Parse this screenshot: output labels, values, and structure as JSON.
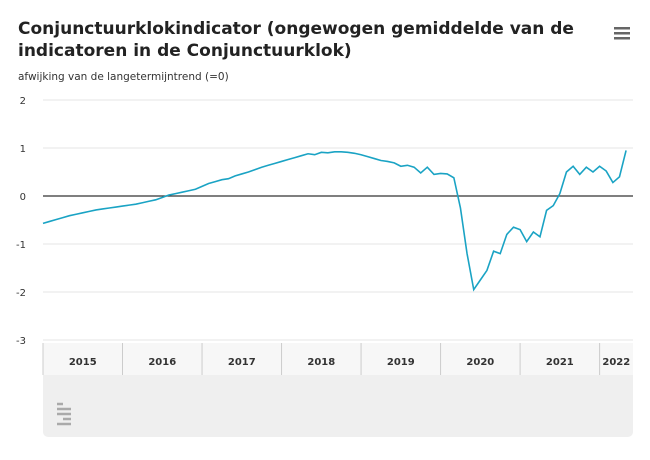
{
  "chart_data": {
    "type": "line",
    "title_lines": [
      "Conjunctuurklokindicator (ongewogen gemiddelde van de",
      "indicatoren in de Conjunctuurklok)"
    ],
    "subtitle": "afwijking van de langetermijntrend (=0)",
    "x": [
      2015,
      2015.083,
      2015.167,
      2015.25,
      2015.333,
      2015.417,
      2015.5,
      2015.583,
      2015.667,
      2015.75,
      2015.833,
      2015.917,
      2016,
      2016.083,
      2016.167,
      2016.25,
      2016.333,
      2016.417,
      2016.5,
      2016.583,
      2016.667,
      2016.75,
      2016.833,
      2016.917,
      2017,
      2017.083,
      2017.167,
      2017.25,
      2017.333,
      2017.417,
      2017.5,
      2017.583,
      2017.667,
      2017.75,
      2017.833,
      2017.917,
      2018,
      2018.083,
      2018.167,
      2018.25,
      2018.333,
      2018.417,
      2018.5,
      2018.583,
      2018.667,
      2018.75,
      2018.833,
      2018.917,
      2019,
      2019.083,
      2019.167,
      2019.25,
      2019.333,
      2019.417,
      2019.5,
      2019.583,
      2019.667,
      2019.75,
      2019.833,
      2019.917,
      2020,
      2020.083,
      2020.167,
      2020.25,
      2020.333,
      2020.417,
      2020.5,
      2020.583,
      2020.667,
      2020.75,
      2020.833,
      2020.917,
      2021,
      2021.083,
      2021.167,
      2021.25,
      2021.333,
      2021.417,
      2021.5,
      2021.583,
      2021.667,
      2021.75,
      2021.833,
      2021.917,
      2022,
      2022.083,
      2022.167,
      2022.25,
      2022.333
    ],
    "series": [
      {
        "color": "#1aa3c4",
        "values": [
          -0.57,
          -0.53,
          -0.49,
          -0.45,
          -0.41,
          -0.38,
          -0.35,
          -0.32,
          -0.29,
          -0.27,
          -0.25,
          -0.23,
          -0.21,
          -0.19,
          -0.17,
          -0.14,
          -0.11,
          -0.08,
          -0.03,
          0.02,
          0.05,
          0.08,
          0.11,
          0.14,
          0.2,
          0.26,
          0.3,
          0.34,
          0.36,
          0.42,
          0.46,
          0.5,
          0.55,
          0.6,
          0.64,
          0.68,
          0.72,
          0.76,
          0.8,
          0.84,
          0.88,
          0.86,
          0.91,
          0.9,
          0.92,
          0.92,
          0.91,
          0.89,
          0.86,
          0.82,
          0.78,
          0.74,
          0.72,
          0.69,
          0.62,
          0.64,
          0.6,
          0.48,
          0.6,
          0.45,
          0.47,
          0.46,
          0.38,
          -0.25,
          -1.2,
          -1.95,
          -1.75,
          -1.55,
          -1.15,
          -1.2,
          -0.8,
          -0.65,
          -0.7,
          -0.95,
          -0.75,
          -0.85,
          -0.3,
          -0.2,
          0.05,
          0.5,
          0.62,
          0.45,
          0.6,
          0.5,
          0.62,
          0.52,
          0.28,
          0.4,
          0.95
        ]
      }
    ],
    "xlim": [
      2015,
      2022.42
    ],
    "xticks": [
      2015,
      2016,
      2017,
      2018,
      2019,
      2020,
      2021,
      2022
    ],
    "ylim": [
      -3,
      2
    ],
    "yticks": [
      -3,
      -2,
      -1,
      0,
      1,
      2
    ],
    "grid": true
  }
}
